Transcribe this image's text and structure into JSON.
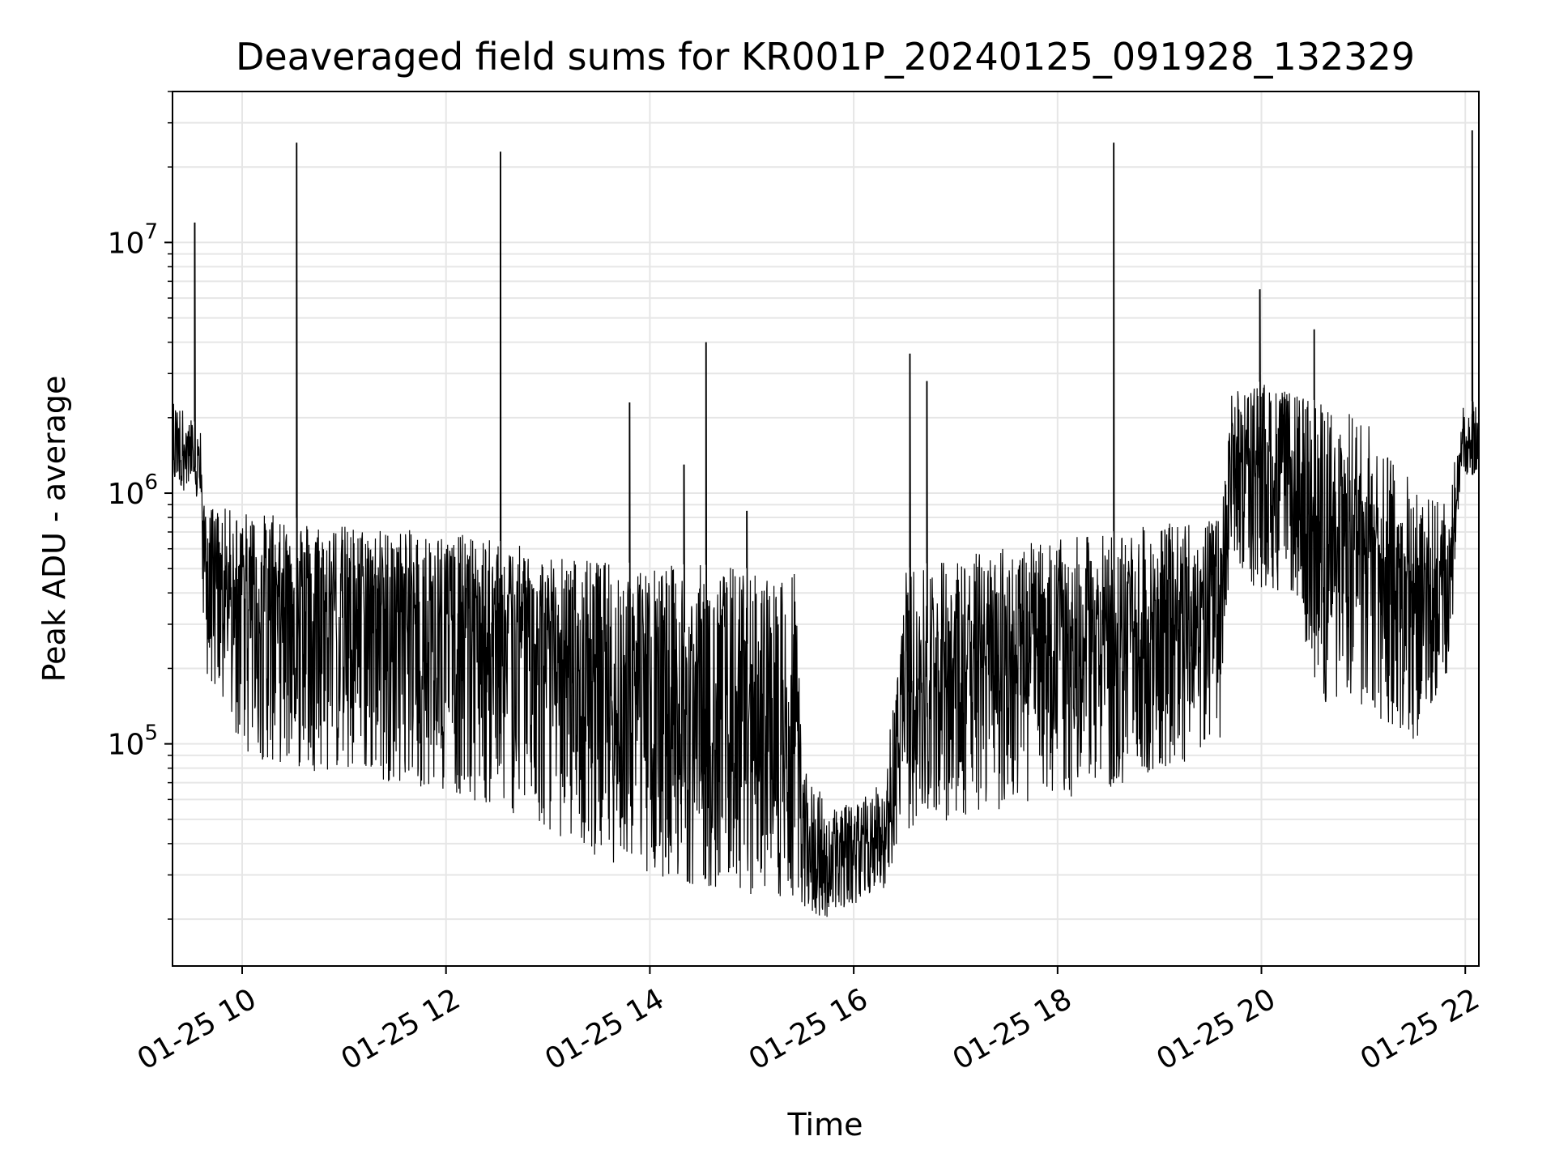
{
  "chart_data": {
    "type": "line",
    "title": "Deaveraged field sums for KR001P_20240125_091928_132329",
    "xlabel": "Time",
    "ylabel": "Peak ADU - average",
    "yscale": "log",
    "ylim": [
      13000,
      40000000
    ],
    "xlim": [
      "01-25 09:19",
      "01-25 22:08"
    ],
    "x_ticks": [
      "01-25 10",
      "01-25 12",
      "01-25 14",
      "01-25 16",
      "01-25 18",
      "01-25 20",
      "01-25 22"
    ],
    "y_ticks": [
      {
        "base": "10",
        "exp": "5",
        "value": 100000
      },
      {
        "base": "10",
        "exp": "6",
        "value": 1000000
      },
      {
        "base": "10",
        "exp": "7",
        "value": 10000000
      }
    ],
    "grid": true,
    "legend": "none",
    "line_color": "#000000",
    "envelope": {
      "note_units": "hours of day 2024-01-25; values in ADU",
      "x_hours": [
        9.33,
        9.6,
        9.62,
        10.0,
        10.5,
        11.0,
        11.5,
        12.0,
        12.5,
        13.0,
        13.5,
        14.0,
        14.5,
        15.0,
        15.45,
        15.5,
        15.8,
        16.0,
        16.3,
        16.5,
        17.0,
        17.5,
        18.0,
        18.5,
        19.0,
        19.6,
        19.7,
        20.0,
        20.3,
        20.6,
        21.0,
        21.5,
        21.85,
        21.95,
        22.13
      ],
      "upper": [
        2400000,
        1800000,
        900000,
        850000,
        800000,
        750000,
        720000,
        700000,
        650000,
        580000,
        540000,
        520000,
        520000,
        500000,
        480000,
        80000,
        55000,
        60000,
        70000,
        500000,
        560000,
        620000,
        650000,
        700000,
        750000,
        800000,
        2500000,
        2800000,
        2500000,
        2300000,
        2000000,
        1100000,
        900000,
        2200000,
        2400000
      ],
      "mid": [
        1500000,
        1200000,
        500000,
        420000,
        380000,
        350000,
        330000,
        300000,
        260000,
        220000,
        170000,
        140000,
        110000,
        90000,
        80000,
        32000,
        29000,
        33000,
        40000,
        120000,
        170000,
        220000,
        250000,
        260000,
        260000,
        300000,
        1400000,
        1200000,
        1000000,
        500000,
        550000,
        350000,
        380000,
        1400000,
        1600000
      ],
      "lower": [
        1100000,
        900000,
        200000,
        90000,
        80000,
        75000,
        70000,
        65000,
        55000,
        45000,
        35000,
        30000,
        27000,
        25000,
        23000,
        21000,
        20000,
        23000,
        26000,
        45000,
        50000,
        55000,
        60000,
        65000,
        70000,
        100000,
        500000,
        400000,
        400000,
        140000,
        140000,
        100000,
        200000,
        1100000,
        1200000
      ]
    },
    "spikes": [
      {
        "x": "09:32",
        "y": 12000000
      },
      {
        "x": "10:32",
        "y": 25000000
      },
      {
        "x": "12:32",
        "y": 23000000
      },
      {
        "x": "13:48",
        "y": 2300000
      },
      {
        "x": "14:20",
        "y": 1300000
      },
      {
        "x": "14:33",
        "y": 4000000
      },
      {
        "x": "14:57",
        "y": 850000
      },
      {
        "x": "16:33",
        "y": 3600000
      },
      {
        "x": "16:43",
        "y": 2800000
      },
      {
        "x": "18:33",
        "y": 25000000
      },
      {
        "x": "19:59",
        "y": 6500000
      },
      {
        "x": "20:31",
        "y": 4500000
      },
      {
        "x": "22:04",
        "y": 28000000
      }
    ]
  }
}
